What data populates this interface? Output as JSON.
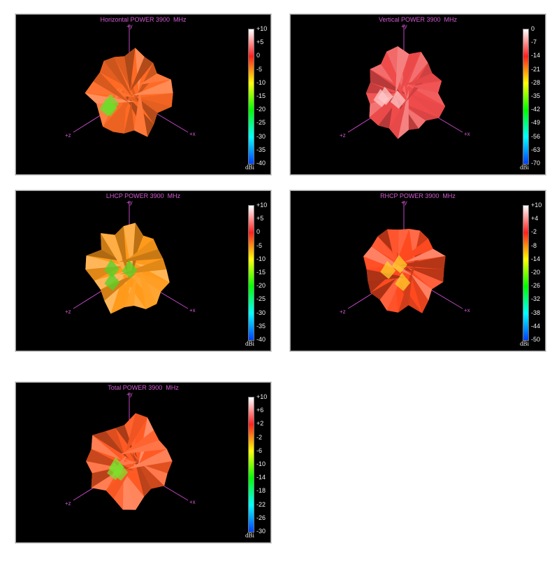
{
  "axis_labels": {
    "y": "+y",
    "x": "+x",
    "z": "+z"
  },
  "colormap": [
    "#ffffff",
    "#ff2020",
    "#ffff00",
    "#00ff00",
    "#00ffff",
    "#0040ff"
  ],
  "chart_data": [
    {
      "type": "heatmap",
      "title": "Horizontal POWER 3900  MHz",
      "unit": "dBi",
      "ticks": [
        "+10",
        "+5",
        "0",
        "-5",
        "-10",
        "-15",
        "-20",
        "-25",
        "-30",
        "-35",
        "-40"
      ],
      "range": [
        -40,
        10
      ],
      "dominant_color": "#ff6a24",
      "highlight_color": "#6fdc2c"
    },
    {
      "type": "heatmap",
      "title": "Vertical POWER 3900  MHz",
      "unit": "dBi",
      "ticks": [
        "0",
        "-7",
        "-14",
        "-21",
        "-28",
        "-35",
        "-42",
        "-49",
        "-56",
        "-63",
        "-70"
      ],
      "range": [
        -70,
        0
      ],
      "dominant_color": "#f04b4b",
      "highlight_color": "#ffc8c8"
    },
    {
      "type": "heatmap",
      "title": "LHCP POWER 3900  MHz",
      "unit": "dBi",
      "ticks": [
        "+10",
        "+5",
        "0",
        "-5",
        "-10",
        "-15",
        "-20",
        "-25",
        "-30",
        "-35",
        "-40"
      ],
      "range": [
        -40,
        10
      ],
      "dominant_color": "#ff9a1a",
      "highlight_color": "#4fd42a"
    },
    {
      "type": "heatmap",
      "title": "RHCP POWER 3900  MHz",
      "unit": "dBi",
      "ticks": [
        "+10",
        "+4",
        "-2",
        "-8",
        "-14",
        "-20",
        "-26",
        "-32",
        "-38",
        "-44",
        "-50"
      ],
      "range": [
        -50,
        10
      ],
      "dominant_color": "#ff4a20",
      "highlight_color": "#ffd22a"
    },
    {
      "type": "heatmap",
      "title": "Total POWER 3900  MHz",
      "unit": "dBi",
      "ticks": [
        "+10",
        "+6",
        "+2",
        "-2",
        "-6",
        "-10",
        "-14",
        "-18",
        "-22",
        "-26",
        "-30"
      ],
      "range": [
        -30,
        10
      ],
      "dominant_color": "#ff5a24",
      "highlight_color": "#7ee02c"
    }
  ]
}
